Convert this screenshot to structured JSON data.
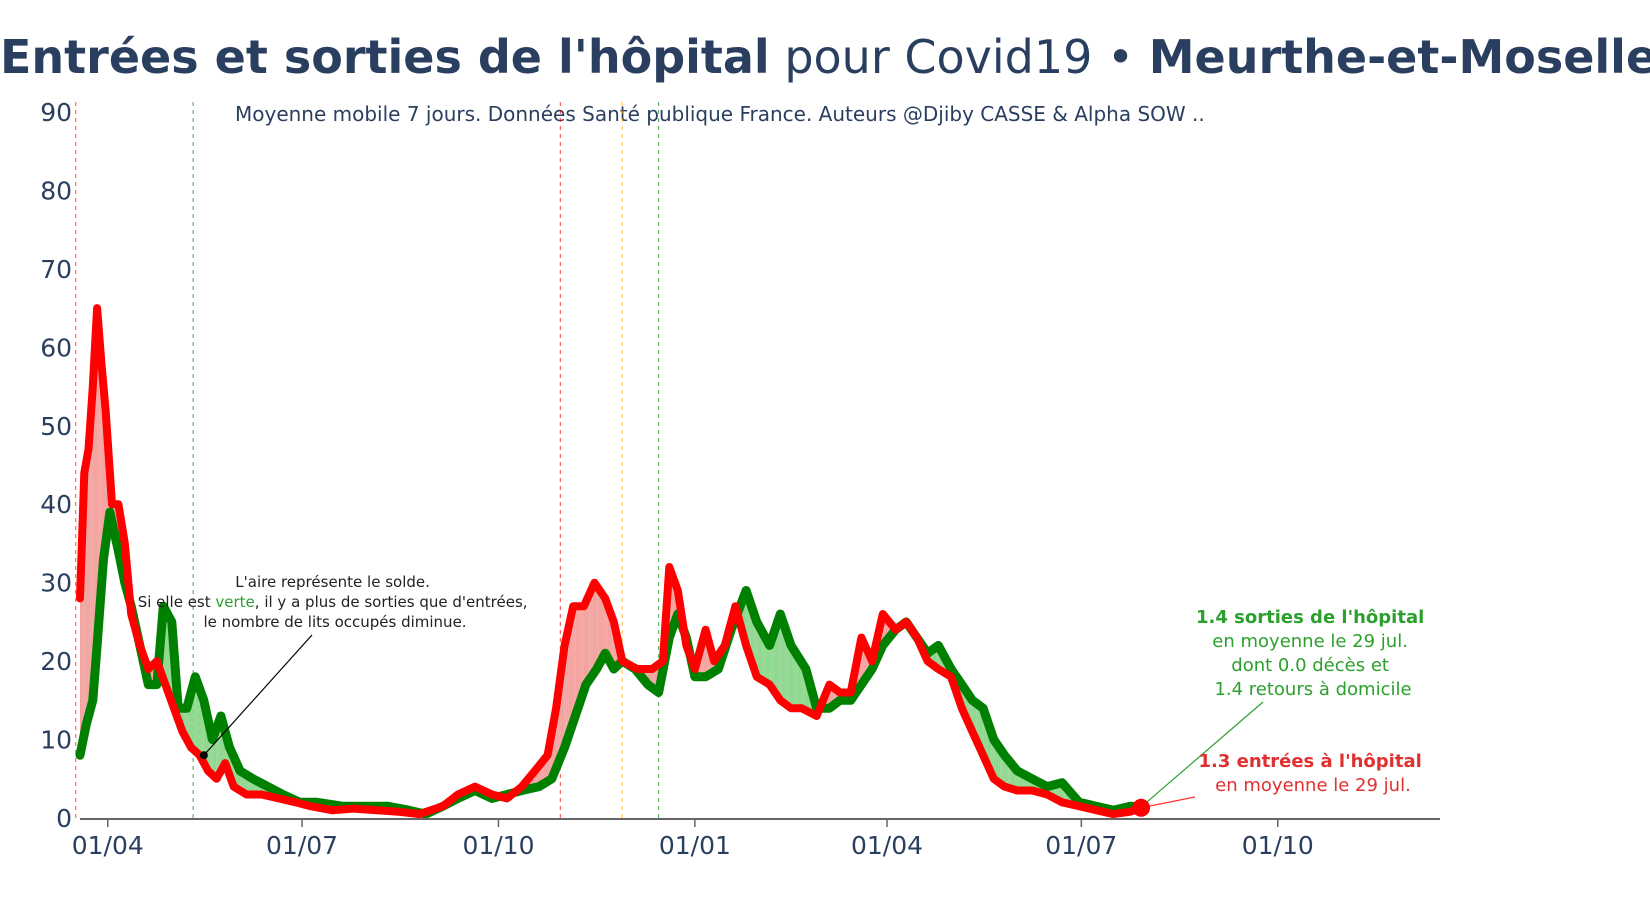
{
  "title": {
    "part1": "Entrées et sorties de l'hôpital",
    "part2": " pour Covid19 • ",
    "part3": "Meurthe-et-Moselle"
  },
  "subtitle": "Moyenne mobile 7 jours. Données Santé publique France. Auteurs @Djiby CASSE & Alpha SOW ..",
  "colors": {
    "sorties": "#008000",
    "entrees": "#ff0000",
    "fill_green": "#90d890",
    "fill_red": "#f4a4a0",
    "text": "#2a3f5f"
  },
  "chart_data": {
    "type": "line",
    "x_unit": "date",
    "ylim": [
      0,
      90
    ],
    "xlim": [
      "2020-03-19",
      "2021-12-16"
    ],
    "y_ticks": [
      0,
      10,
      20,
      30,
      40,
      50,
      60,
      70,
      80,
      90
    ],
    "x_ticks": [
      {
        "date": "2020-04-01",
        "label": "01/04"
      },
      {
        "date": "2020-07-01",
        "label": "01/07"
      },
      {
        "date": "2020-10-01",
        "label": "01/10"
      },
      {
        "date": "2021-01-01",
        "label": "01/01"
      },
      {
        "date": "2021-04-01",
        "label": "01/04"
      },
      {
        "date": "2021-07-01",
        "label": "01/07"
      },
      {
        "date": "2021-10-01",
        "label": "01/10"
      }
    ],
    "vertical_lines": [
      {
        "date": "2020-03-17",
        "color": "#ff0000"
      },
      {
        "date": "2020-05-11",
        "color": "#008000"
      },
      {
        "date": "2020-10-30",
        "color": "#ff0000"
      },
      {
        "date": "2020-11-28",
        "color": "#ffa500"
      },
      {
        "date": "2020-12-15",
        "color": "#008000"
      }
    ],
    "series": [
      {
        "key": "entrees",
        "points": [
          [
            "2020-03-19",
            28
          ],
          [
            "2020-03-21",
            44
          ],
          [
            "2020-03-23",
            47
          ],
          [
            "2020-03-25",
            55
          ],
          [
            "2020-03-27",
            65
          ],
          [
            "2020-03-29",
            58
          ],
          [
            "2020-03-31",
            52
          ],
          [
            "2020-04-03",
            40
          ],
          [
            "2020-04-06",
            40
          ],
          [
            "2020-04-09",
            35
          ],
          [
            "2020-04-12",
            26
          ],
          [
            "2020-04-16",
            22
          ],
          [
            "2020-04-20",
            19
          ],
          [
            "2020-04-24",
            20
          ],
          [
            "2020-04-28",
            17
          ],
          [
            "2020-05-02",
            14
          ],
          [
            "2020-05-06",
            11
          ],
          [
            "2020-05-10",
            9
          ],
          [
            "2020-05-14",
            8
          ],
          [
            "2020-05-18",
            6
          ],
          [
            "2020-05-22",
            5
          ],
          [
            "2020-05-26",
            7
          ],
          [
            "2020-05-30",
            4
          ],
          [
            "2020-06-05",
            3
          ],
          [
            "2020-06-12",
            3
          ],
          [
            "2020-06-20",
            2.5
          ],
          [
            "2020-06-28",
            2
          ],
          [
            "2020-07-05",
            1.5
          ],
          [
            "2020-07-15",
            1
          ],
          [
            "2020-07-25",
            1.2
          ],
          [
            "2020-08-05",
            1
          ],
          [
            "2020-08-15",
            0.8
          ],
          [
            "2020-08-25",
            0.5
          ],
          [
            "2020-09-05",
            1.5
          ],
          [
            "2020-09-12",
            3
          ],
          [
            "2020-09-20",
            4
          ],
          [
            "2020-09-28",
            3
          ],
          [
            "2020-10-05",
            2.5
          ],
          [
            "2020-10-12",
            4
          ],
          [
            "2020-10-18",
            6
          ],
          [
            "2020-10-24",
            8
          ],
          [
            "2020-10-28",
            14
          ],
          [
            "2020-11-01",
            22
          ],
          [
            "2020-11-05",
            27
          ],
          [
            "2020-11-10",
            27
          ],
          [
            "2020-11-15",
            30
          ],
          [
            "2020-11-20",
            28
          ],
          [
            "2020-11-24",
            25
          ],
          [
            "2020-11-28",
            20
          ],
          [
            "2020-12-05",
            19
          ],
          [
            "2020-12-12",
            19
          ],
          [
            "2020-12-17",
            20
          ],
          [
            "2020-12-20",
            32
          ],
          [
            "2020-12-24",
            29
          ],
          [
            "2020-12-28",
            22
          ],
          [
            "2021-01-01",
            19
          ],
          [
            "2021-01-06",
            24
          ],
          [
            "2021-01-10",
            20
          ],
          [
            "2021-01-15",
            22
          ],
          [
            "2021-01-20",
            27
          ],
          [
            "2021-01-25",
            22
          ],
          [
            "2021-01-30",
            18
          ],
          [
            "2021-02-05",
            17
          ],
          [
            "2021-02-10",
            15
          ],
          [
            "2021-02-15",
            14
          ],
          [
            "2021-02-20",
            14
          ],
          [
            "2021-02-27",
            13
          ],
          [
            "2021-03-05",
            17
          ],
          [
            "2021-03-10",
            16
          ],
          [
            "2021-03-15",
            16
          ],
          [
            "2021-03-20",
            23
          ],
          [
            "2021-03-25",
            20
          ],
          [
            "2021-03-30",
            26
          ],
          [
            "2021-04-05",
            24
          ],
          [
            "2021-04-10",
            25
          ],
          [
            "2021-04-15",
            23
          ],
          [
            "2021-04-20",
            20
          ],
          [
            "2021-04-25",
            19
          ],
          [
            "2021-05-01",
            18
          ],
          [
            "2021-05-06",
            14
          ],
          [
            "2021-05-11",
            11
          ],
          [
            "2021-05-16",
            8
          ],
          [
            "2021-05-21",
            5
          ],
          [
            "2021-05-26",
            4
          ],
          [
            "2021-06-01",
            3.5
          ],
          [
            "2021-06-08",
            3.5
          ],
          [
            "2021-06-15",
            3
          ],
          [
            "2021-06-22",
            2
          ],
          [
            "2021-06-30",
            1.5
          ],
          [
            "2021-07-08",
            1
          ],
          [
            "2021-07-16",
            0.5
          ],
          [
            "2021-07-24",
            0.8
          ],
          [
            "2021-07-29",
            1.3
          ]
        ]
      },
      {
        "key": "sorties",
        "points": [
          [
            "2020-03-19",
            8
          ],
          [
            "2020-03-22",
            12
          ],
          [
            "2020-03-25",
            15
          ],
          [
            "2020-03-27",
            22
          ],
          [
            "2020-03-30",
            33
          ],
          [
            "2020-04-02",
            39
          ],
          [
            "2020-04-06",
            34
          ],
          [
            "2020-04-09",
            30
          ],
          [
            "2020-04-12",
            27
          ],
          [
            "2020-04-16",
            22
          ],
          [
            "2020-04-20",
            17
          ],
          [
            "2020-04-24",
            17
          ],
          [
            "2020-04-27",
            27
          ],
          [
            "2020-05-01",
            25
          ],
          [
            "2020-05-04",
            14
          ],
          [
            "2020-05-08",
            14
          ],
          [
            "2020-05-12",
            18
          ],
          [
            "2020-05-16",
            15
          ],
          [
            "2020-05-20",
            10
          ],
          [
            "2020-05-24",
            13
          ],
          [
            "2020-05-28",
            9
          ],
          [
            "2020-06-02",
            6
          ],
          [
            "2020-06-08",
            5
          ],
          [
            "2020-06-15",
            4
          ],
          [
            "2020-06-22",
            3
          ],
          [
            "2020-06-30",
            2
          ],
          [
            "2020-07-08",
            2
          ],
          [
            "2020-07-20",
            1.5
          ],
          [
            "2020-08-01",
            1.5
          ],
          [
            "2020-08-10",
            1.5
          ],
          [
            "2020-08-20",
            1
          ],
          [
            "2020-08-28",
            0.5
          ],
          [
            "2020-09-05",
            1.5
          ],
          [
            "2020-09-12",
            2.5
          ],
          [
            "2020-09-20",
            3.5
          ],
          [
            "2020-09-28",
            2.5
          ],
          [
            "2020-10-05",
            3
          ],
          [
            "2020-10-12",
            3.5
          ],
          [
            "2020-10-20",
            4
          ],
          [
            "2020-10-26",
            5
          ],
          [
            "2020-11-01",
            9
          ],
          [
            "2020-11-06",
            13
          ],
          [
            "2020-11-11",
            17
          ],
          [
            "2020-11-16",
            19
          ],
          [
            "2020-11-20",
            21
          ],
          [
            "2020-11-24",
            19
          ],
          [
            "2020-11-28",
            20
          ],
          [
            "2020-12-04",
            19
          ],
          [
            "2020-12-10",
            17
          ],
          [
            "2020-12-15",
            16
          ],
          [
            "2020-12-20",
            23
          ],
          [
            "2020-12-24",
            26
          ],
          [
            "2020-12-28",
            23
          ],
          [
            "2021-01-01",
            18
          ],
          [
            "2021-01-06",
            18
          ],
          [
            "2021-01-12",
            19
          ],
          [
            "2021-01-18",
            24
          ],
          [
            "2021-01-25",
            29
          ],
          [
            "2021-01-30",
            25
          ],
          [
            "2021-02-05",
            22
          ],
          [
            "2021-02-10",
            26
          ],
          [
            "2021-02-15",
            22
          ],
          [
            "2021-02-22",
            19
          ],
          [
            "2021-02-27",
            14
          ],
          [
            "2021-03-05",
            14
          ],
          [
            "2021-03-10",
            15
          ],
          [
            "2021-03-15",
            15
          ],
          [
            "2021-03-20",
            17
          ],
          [
            "2021-03-25",
            19
          ],
          [
            "2021-03-30",
            22
          ],
          [
            "2021-04-05",
            24
          ],
          [
            "2021-04-10",
            25
          ],
          [
            "2021-04-15",
            23
          ],
          [
            "2021-04-20",
            21
          ],
          [
            "2021-04-25",
            22
          ],
          [
            "2021-05-01",
            19
          ],
          [
            "2021-05-06",
            17
          ],
          [
            "2021-05-11",
            15
          ],
          [
            "2021-05-16",
            14
          ],
          [
            "2021-05-21",
            10
          ],
          [
            "2021-05-26",
            8
          ],
          [
            "2021-06-01",
            6
          ],
          [
            "2021-06-08",
            5
          ],
          [
            "2021-06-15",
            4
          ],
          [
            "2021-06-22",
            4.5
          ],
          [
            "2021-06-30",
            2
          ],
          [
            "2021-07-08",
            1.5
          ],
          [
            "2021-07-16",
            1
          ],
          [
            "2021-07-24",
            1.5
          ],
          [
            "2021-07-29",
            1.4
          ]
        ]
      }
    ],
    "annotations": {
      "solde": {
        "line1": "L'aire représente le solde.",
        "line2_a": "Si elle est ",
        "line2_b": "verte",
        "line2_c": ", il y a plus de sorties que d'entrées,",
        "line3": "le nombre de lits occupés diminue.",
        "point_date": "2020-05-16",
        "point_value": 8
      },
      "sorties": {
        "line1": "1.4 sorties de l'hôpital",
        "line2": "en moyenne le 29 jul.",
        "line3": "dont 0.0 décès et",
        "line4": "1.4 retours à domicile"
      },
      "entrees": {
        "line1": "1.3 entrées à l'hôpital",
        "line2": "en moyenne le 29 jul."
      }
    }
  }
}
